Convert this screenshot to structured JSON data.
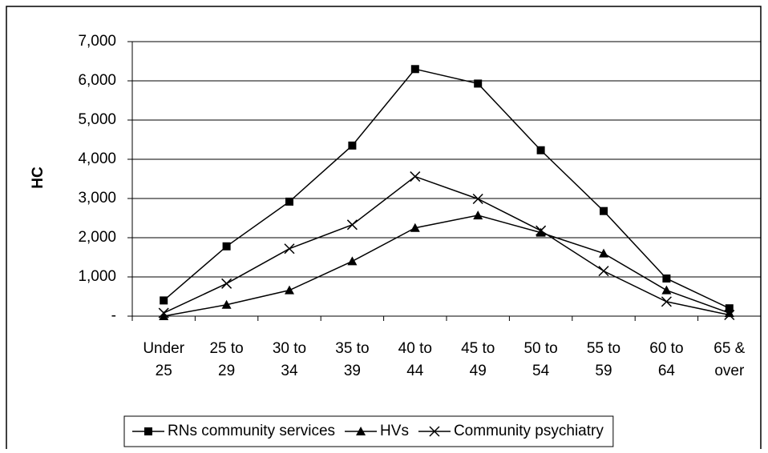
{
  "chart_data": {
    "type": "line",
    "y_label": "HC",
    "categories": [
      "Under 25",
      "25 to 29",
      "30 to 34",
      "35 to 39",
      "40 to 44",
      "45 to 49",
      "50 to 54",
      "55 to 59",
      "60 to 64",
      "65 & over"
    ],
    "series": [
      {
        "name": "RNs community services",
        "color": "#000000",
        "marker": "square",
        "values": [
          400,
          1780,
          2920,
          4350,
          6300,
          5930,
          4230,
          2680,
          960,
          200
        ]
      },
      {
        "name": "HVs",
        "color": "#000000",
        "marker": "triangle",
        "values": [
          0,
          290,
          660,
          1400,
          2250,
          2570,
          2130,
          1600,
          660,
          80
        ]
      },
      {
        "name": "Community psychiatry",
        "color": "#000000",
        "marker": "x",
        "values": [
          80,
          830,
          1720,
          2330,
          3560,
          2990,
          2180,
          1150,
          370,
          30
        ]
      }
    ],
    "ylim": [
      0,
      7000
    ],
    "yticks": [
      {
        "value": 0,
        "label": "-"
      },
      {
        "value": 1000,
        "label": "1,000"
      },
      {
        "value": 2000,
        "label": "2,000"
      },
      {
        "value": 3000,
        "label": "3,000"
      },
      {
        "value": 4000,
        "label": "4,000"
      },
      {
        "value": 5000,
        "label": "5,000"
      },
      {
        "value": 6000,
        "label": "6,000"
      },
      {
        "value": 7000,
        "label": "7,000"
      }
    ],
    "grid": true,
    "legend": "bottom"
  }
}
